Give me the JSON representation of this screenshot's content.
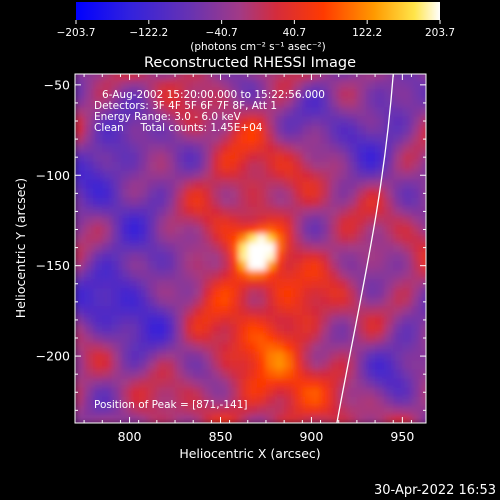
{
  "chart_data": {
    "type": "heatmap",
    "title": "Reconstructed RHESSI Image",
    "xlabel": "Heliocentric X (arcsec)",
    "ylabel": "Heliocentric Y (arcsec)",
    "xlim": [
      770,
      963
    ],
    "ylim": [
      -237,
      -44
    ],
    "x_ticks": [
      800,
      850,
      900,
      950
    ],
    "x_tick_labels": [
      "800",
      "850",
      "900",
      "950"
    ],
    "y_ticks": [
      -50,
      -100,
      -150,
      -200
    ],
    "y_tick_labels": [
      "−50",
      "−100",
      "−150",
      "−200"
    ],
    "colorbar": {
      "min": -203.7,
      "max": 203.7,
      "tick_values": [
        -203.7,
        -122.2,
        -40.7,
        40.7,
        122.2,
        203.7
      ],
      "tick_labels": [
        "−203.7",
        "−122.2",
        "−40.7",
        "40.7",
        "122.2",
        "203.7"
      ],
      "units_label": "(photons cm⁻² s⁻¹ asec⁻²)",
      "colors": [
        "#0000ff",
        "#4b2fc8",
        "#8a3aa8",
        "#c62a5a",
        "#ff2a00",
        "#ff8c00",
        "#ffd000",
        "#ffffff"
      ]
    },
    "annotations": [
      "6-Aug-2002 15:20:00.000 to 15:22:56.000",
      "Detectors: 3F 4F 5F 6F 7F 8F, Att 1",
      "Energy Range: 3.0 - 6.0 keV",
      "Clean     Total counts: 1.45E+04"
    ],
    "peak_label": "Position of Peak = [871,-141]",
    "peak": {
      "x": 871,
      "y": -141
    },
    "limb": {
      "x_at_top": 945,
      "x_at_bottom": 914
    }
  },
  "footer": {
    "timestamp": "30-Apr-2022 16:53"
  }
}
